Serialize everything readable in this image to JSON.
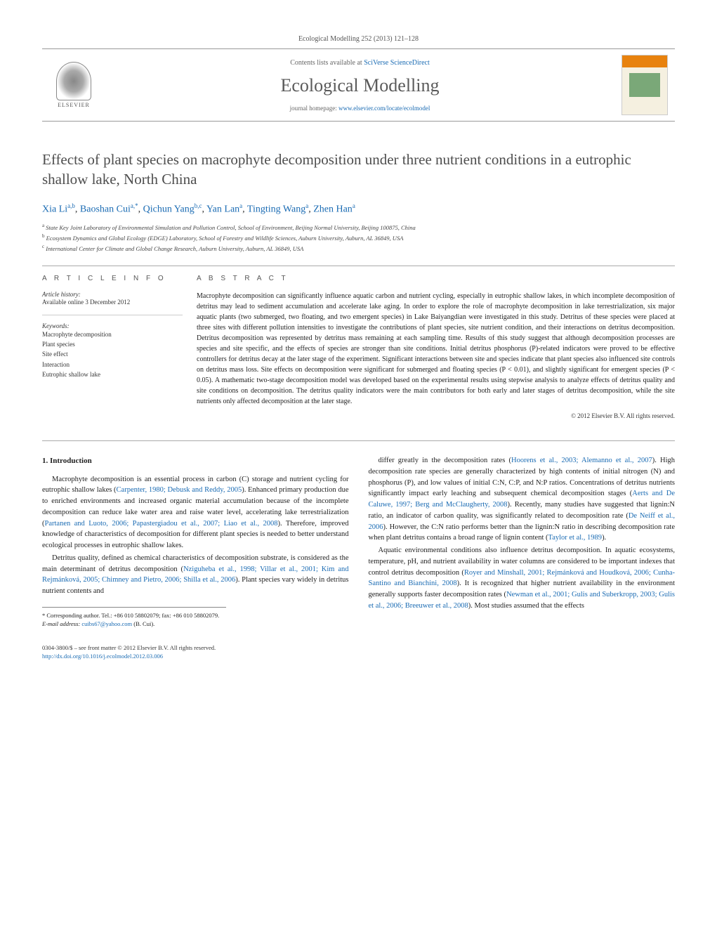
{
  "journal_ref": "Ecological Modelling 252 (2013) 121–128",
  "header": {
    "contents_prefix": "Contents lists available at ",
    "contents_link": "SciVerse ScienceDirect",
    "journal_name": "Ecological Modelling",
    "homepage_prefix": "journal homepage: ",
    "homepage_link": "www.elsevier.com/locate/ecolmodel",
    "publisher_name": "ELSEVIER",
    "cover_title_top": "ECOLOGICAL",
    "cover_title_bottom": "MODELLING"
  },
  "title": "Effects of plant species on macrophyte decomposition under three nutrient conditions in a eutrophic shallow lake, North China",
  "authors": [
    {
      "name": "Xia Li",
      "affil": "a,b"
    },
    {
      "name": "Baoshan Cui",
      "affil": "a,*"
    },
    {
      "name": "Qichun Yang",
      "affil": "b,c"
    },
    {
      "name": "Yan Lan",
      "affil": "a"
    },
    {
      "name": "Tingting Wang",
      "affil": "a"
    },
    {
      "name": "Zhen Han",
      "affil": "a"
    }
  ],
  "affiliations": [
    {
      "marker": "a",
      "text": "State Key Joint Laboratory of Environmental Simulation and Pollution Control, School of Environment, Beijing Normal University, Beijing 100875, China"
    },
    {
      "marker": "b",
      "text": "Ecosystem Dynamics and Global Ecology (EDGE) Laboratory, School of Forestry and Wildlife Sciences, Auburn University, Auburn, AL 36849, USA"
    },
    {
      "marker": "c",
      "text": "International Center for Climate and Global Change Research, Auburn University, Auburn, AL 36849, USA"
    }
  ],
  "article_info": {
    "heading": "A R T I C L E   I N F O",
    "history_label": "Article history:",
    "history_text": "Available online 3 December 2012",
    "keywords_label": "Keywords:",
    "keywords": [
      "Macrophyte decomposition",
      "Plant species",
      "Site effect",
      "Interaction",
      "Eutrophic shallow lake"
    ]
  },
  "abstract": {
    "heading": "A B S T R A C T",
    "text": "Macrophyte decomposition can significantly influence aquatic carbon and nutrient cycling, especially in eutrophic shallow lakes, in which incomplete decomposition of detritus may lead to sediment accumulation and accelerate lake aging. In order to explore the role of macrophyte decomposition in lake terrestrialization, six major aquatic plants (two submerged, two floating, and two emergent species) in Lake Baiyangdian were investigated in this study. Detritus of these species were placed at three sites with different pollution intensities to investigate the contributions of plant species, site nutrient condition, and their interactions on detritus decomposition. Detritus decomposition was represented by detritus mass remaining at each sampling time. Results of this study suggest that although decomposition processes are species and site specific, and the effects of species are stronger than site conditions. Initial detritus phosphorus (P)-related indicators were proved to be effective controllers for detritus decay at the later stage of the experiment. Significant interactions between site and species indicate that plant species also influenced site controls on detritus mass loss. Site effects on decomposition were significant for submerged and floating species (P < 0.01), and slightly significant for emergent species (P < 0.05). A mathematic two-stage decomposition model was developed based on the experimental results using stepwise analysis to analyze effects of detritus quality and site conditions on decomposition. The detritus quality indicators were the main contributors for both early and later stages of detritus decomposition, while the site nutrients only affected decomposition at the later stage.",
    "copyright": "© 2012 Elsevier B.V. All rights reserved."
  },
  "body": {
    "section_number": "1.",
    "section_title": "Introduction",
    "paragraphs": [
      {
        "text_pre": "Macrophyte decomposition is an essential process in carbon (C) storage and nutrient cycling for eutrophic shallow lakes (",
        "cite1": "Carpenter, 1980; Debusk and Reddy, 2005",
        "text_mid1": "). Enhanced primary production due to enriched environments and increased organic material accumulation because of the incomplete decomposition can reduce lake water area and raise water level, accelerating lake terrestrialization (",
        "cite2": "Partanen and Luoto, 2006; Papastergiadou et al., 2007; Liao et al., 2008",
        "text_post": "). Therefore, improved knowledge of characteristics of decomposition for different plant species is needed to better understand ecological processes in eutrophic shallow lakes."
      },
      {
        "text_pre": "Detritus quality, defined as chemical characteristics of decomposition substrate, is considered as the main determinant of detritus decomposition (",
        "cite1": "Nziguheba et al., 1998; Villar et al., 2001; Kim and Rejmánková, 2005; Chimney and Pietro, 2006; Shilla et al., 2006",
        "text_post": "). Plant species vary widely in detritus nutrient contents and"
      },
      {
        "text_pre": "differ greatly in the decomposition rates (",
        "cite1": "Hoorens et al., 2003; Alemanno et al., 2007",
        "text_mid1": "). High decomposition rate species are generally characterized by high contents of initial nitrogen (N) and phosphorus (P), and low values of initial C:N, C:P, and N:P ratios. Concentrations of detritus nutrients significantly impact early leaching and subsequent chemical decomposition stages (",
        "cite2": "Aerts and De Caluwe, 1997; Berg and McClaugherty, 2008",
        "text_mid2": "). Recently, many studies have suggested that lignin:N ratio, an indicator of carbon quality, was significantly related to decomposition rate (",
        "cite3": "De Neiff et al., 2006",
        "text_mid3": "). However, the C:N ratio performs better than the lignin:N ratio in describing decomposition rate when plant detritus contains a broad range of lignin content (",
        "cite4": "Taylor et al., 1989",
        "text_post": ")."
      },
      {
        "text_pre": "Aquatic environmental conditions also influence detritus decomposition. In aquatic ecosystems, temperature, pH, and nutrient availability in water columns are considered to be important indexes that control detritus decomposition (",
        "cite1": "Royer and Minshall, 2001; Rejmánková and Houdková, 2006; Cunha-Santino and Bianchini, 2008",
        "text_mid1": "). It is recognized that higher nutrient availability in the environment generally supports faster decomposition rates (",
        "cite2": "Newman et al., 2001; Gulis and Suberkropp, 2003; Gulis et al., 2006; Breeuwer et al., 2008",
        "text_post": "). Most studies assumed that the effects"
      }
    ]
  },
  "footnote": {
    "corr_label": "* Corresponding author. Tel.: +86 010 58802079; fax: +86 010 58802079.",
    "email_label": "E-mail address:",
    "email": "cuibs67@yahoo.com",
    "email_person": "(B. Cui)."
  },
  "bottom": {
    "issn_line": "0304-3800/$ – see front matter © 2012 Elsevier B.V. All rights reserved.",
    "doi": "http://dx.doi.org/10.1016/j.ecolmodel.2012.03.006"
  },
  "colors": {
    "link": "#1a6bb3",
    "text": "#333333",
    "heading_gray": "#5a5a5a",
    "border": "#999999",
    "cover_orange": "#e8820e"
  }
}
